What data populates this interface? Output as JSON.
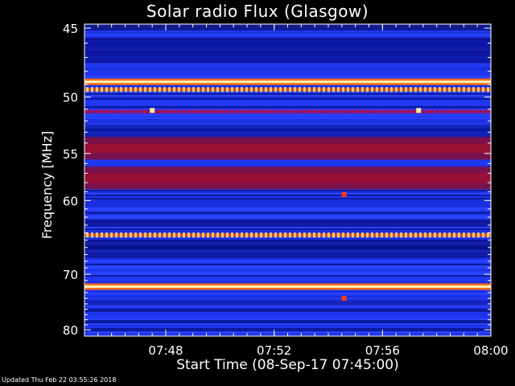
{
  "title": "Solar radio Flux (Glasgow)",
  "ylabel": "Frequency [MHz]",
  "xlabel": "Start Time (08-Sep-17 07:45:00)",
  "updated": "Updated Thu Feb 22 03:55:26 2018",
  "colors": {
    "background": "#000000",
    "axes": "#ffffff",
    "low": "#1f3fff",
    "mid": "#0a0a80",
    "high": "#cc1010",
    "peak": "#ffffff"
  },
  "chart_data": {
    "type": "heatmap",
    "title": "Solar radio Flux (Glasgow)",
    "xlabel": "Start Time (08-Sep-17 07:45:00)",
    "ylabel": "Frequency [MHz]",
    "xlim": [
      "07:45",
      "08:00"
    ],
    "ylim": [
      80,
      44.4
    ],
    "y_inverted": true,
    "yticks": [
      45,
      50,
      55,
      60,
      70,
      80
    ],
    "ytick_labels": [
      "45",
      "50",
      "55",
      "60",
      "70",
      "80"
    ],
    "y_scale": "reciprocal",
    "xticks": [
      "07:48",
      "07:52",
      "07:56",
      "08:00"
    ],
    "colormap": "blue-red-white",
    "intensity_bands": [
      {
        "freq_mhz": 48.8,
        "level": "peak"
      },
      {
        "freq_mhz": 49.4,
        "level": "high-pulsed"
      },
      {
        "freq_mhz": 51.2,
        "level": "medium-pulsed"
      },
      {
        "freq_mhz": 54.5,
        "level": "high"
      },
      {
        "freq_mhz": 57.5,
        "level": "high"
      },
      {
        "freq_mhz": 64.3,
        "level": "high-pulsed"
      },
      {
        "freq_mhz": 72.0,
        "level": "peak"
      }
    ],
    "point_features": [
      {
        "time": "07:47:30",
        "freq_mhz": 51.1,
        "level": "peak"
      },
      {
        "time": "07:57:20",
        "freq_mhz": 51.1,
        "level": "peak"
      },
      {
        "time": "07:54:35",
        "freq_mhz": 59.3,
        "level": "high"
      },
      {
        "time": "07:54:35",
        "freq_mhz": 74.0,
        "level": "high"
      }
    ]
  }
}
